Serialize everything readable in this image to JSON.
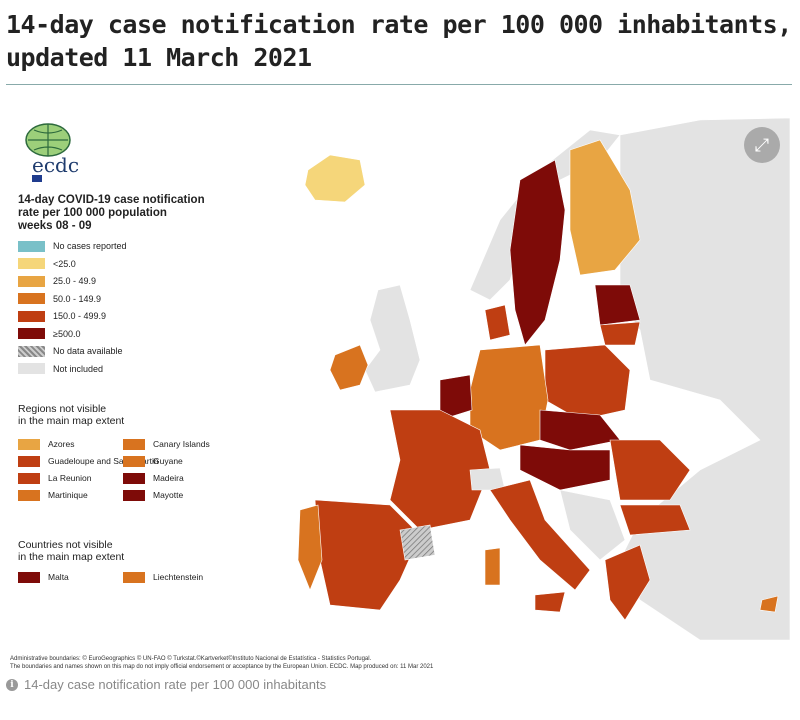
{
  "title": "14-day case notification rate per 100 000 inhabitants, updated 11 March 2021",
  "title_lines": [
    "14-day case notification rate per 100 000 inhabitants,",
    "updated 11 March 2021"
  ],
  "map": {
    "logo_text": "ecdc",
    "legend_title_lines": [
      "14-day COVID-19 case notification",
      "rate per 100 000 population",
      "weeks 08 - 09"
    ],
    "legend_items": [
      {
        "label": "No cases reported",
        "color": "#79c0c8"
      },
      {
        "label": "<25.0",
        "color": "#f5d67a"
      },
      {
        "label": "25.0 - 49.9",
        "color": "#e8a543"
      },
      {
        "label": "50.0 - 149.9",
        "color": "#d8731f"
      },
      {
        "label": "150.0 - 499.9",
        "color": "#bf3e12"
      },
      {
        "label": "≥500.0",
        "color": "#7e0b08"
      },
      {
        "label": "No data available",
        "color": "hatched"
      },
      {
        "label": "Not included",
        "color": "#e3e3e3"
      }
    ],
    "regions_title_lines": [
      "Regions not visible",
      "in the main map extent"
    ],
    "regions": [
      {
        "label": "Azores",
        "color": "#e8a543"
      },
      {
        "label": "Canary Islands",
        "color": "#d8731f"
      },
      {
        "label": "Guadeloupe and Saint Martin",
        "color": "#bf3e12"
      },
      {
        "label": "Guyane",
        "color": "#d8731f"
      },
      {
        "label": "La Reunion",
        "color": "#bf3e12"
      },
      {
        "label": "Madeira",
        "color": "#7e0b08"
      },
      {
        "label": "Martinique",
        "color": "#d8731f"
      },
      {
        "label": "Mayotte",
        "color": "#7e0b08"
      }
    ],
    "countries_title_lines": [
      "Countries not visible",
      "in the main map extent"
    ],
    "countries": [
      {
        "label": "Malta",
        "color": "#7e0b08"
      },
      {
        "label": "Liechtenstein",
        "color": "#d8731f"
      }
    ],
    "credits": [
      "Administrative boundaries: © EuroGeographics © UN-FAO © Turkstat.©Kartverket©Instituto Nacional de Estatística - Statistics Portugal.",
      "The boundaries and names shown on this map do not imply official endorsement or acceptance by the European Union. ECDC. Map produced on: 11 Mar 2021"
    ],
    "expand_icon": "expand-arrows-icon"
  },
  "caption": "14-day case notification rate per 100 000 inhabitants"
}
